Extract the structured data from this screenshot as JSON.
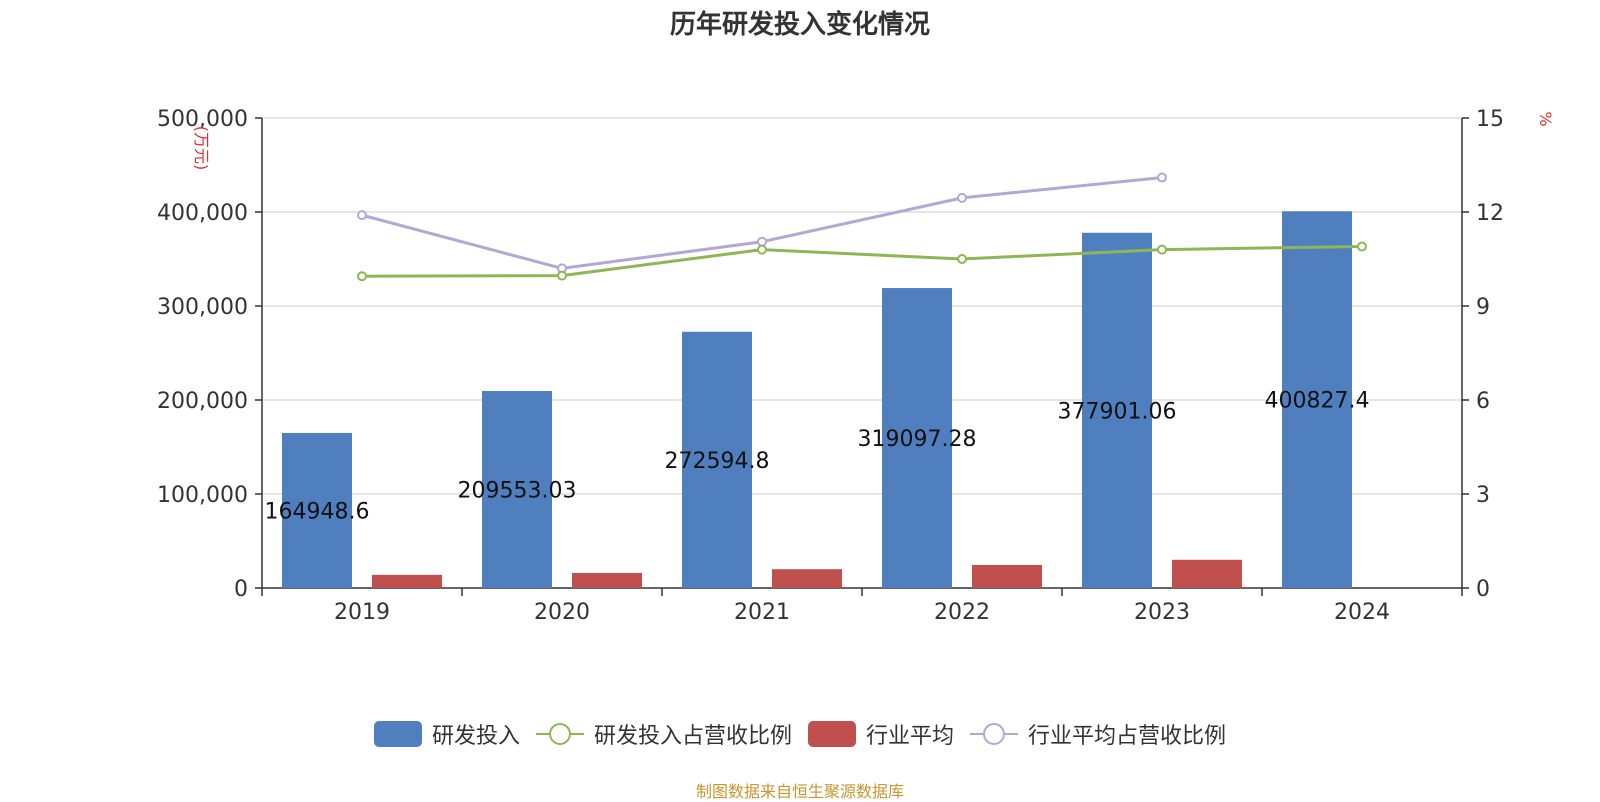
{
  "title": "历年研发投入变化情况",
  "source": "制图数据来自恒生聚源数据库",
  "chart_data": {
    "type": "bar",
    "categories": [
      "2019",
      "2020",
      "2021",
      "2022",
      "2023",
      "2024"
    ],
    "y_left": {
      "label": "(万元)",
      "ylim": [
        0,
        500000
      ],
      "ticks": [
        "0",
        "100,000",
        "200,000",
        "300,000",
        "400,000",
        "500,000"
      ]
    },
    "y_right": {
      "label": "%",
      "ylim": [
        0,
        15
      ],
      "ticks": [
        "0",
        "3",
        "6",
        "9",
        "12",
        "15"
      ]
    },
    "grid": true,
    "legend_position": "bottom",
    "series": [
      {
        "name": "研发投入",
        "type": "bar",
        "axis": "left",
        "color": "#4f7fbf",
        "values": [
          164948.6,
          209553.03,
          272594.8,
          319097.28,
          377901.06,
          400827.4
        ],
        "labels": [
          "164948.6",
          "209553.03",
          "272594.8",
          "319097.28",
          "377901.06",
          "400827.4"
        ]
      },
      {
        "name": "研发投入占营收比例",
        "type": "line",
        "axis": "right",
        "color": "#8fb556",
        "values": [
          9.95,
          9.97,
          10.8,
          10.5,
          10.8,
          10.9
        ]
      },
      {
        "name": "行业平均",
        "type": "bar",
        "axis": "left",
        "color": "#c0504d",
        "values": [
          14000,
          16000,
          20000,
          24500,
          30000,
          null
        ]
      },
      {
        "name": "行业平均占营收比例",
        "type": "line",
        "axis": "right",
        "color": "#b4a7d6",
        "values": [
          11.9,
          10.2,
          11.05,
          12.45,
          13.1,
          null
        ]
      }
    ]
  }
}
